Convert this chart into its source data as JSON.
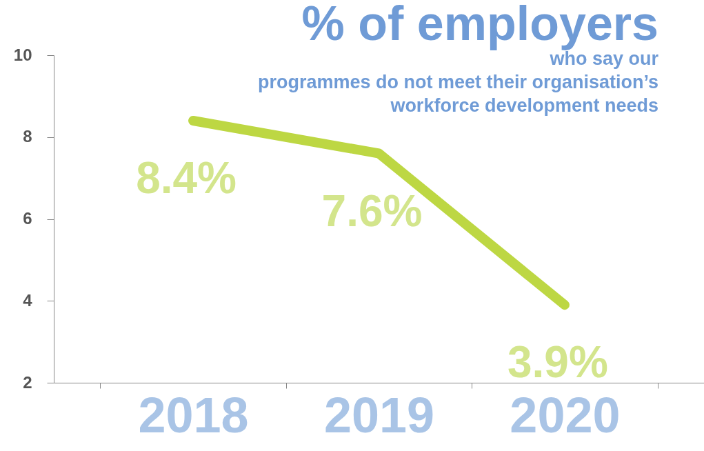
{
  "chart_data": {
    "type": "line",
    "title": "% of employers",
    "subtitle": "who say our\nprogrammes do not meet their organisation’s\nworkforce development needs",
    "categories": [
      "2018",
      "2019",
      "2020"
    ],
    "series": [
      {
        "color": "#bdd743",
        "values": [
          8.4,
          7.6,
          3.9
        ],
        "value_labels": [
          "8.4%",
          "7.6%",
          "3.9%"
        ]
      }
    ],
    "ylim": [
      2,
      10
    ],
    "yticks": [
      2,
      4,
      6,
      8,
      10
    ]
  }
}
